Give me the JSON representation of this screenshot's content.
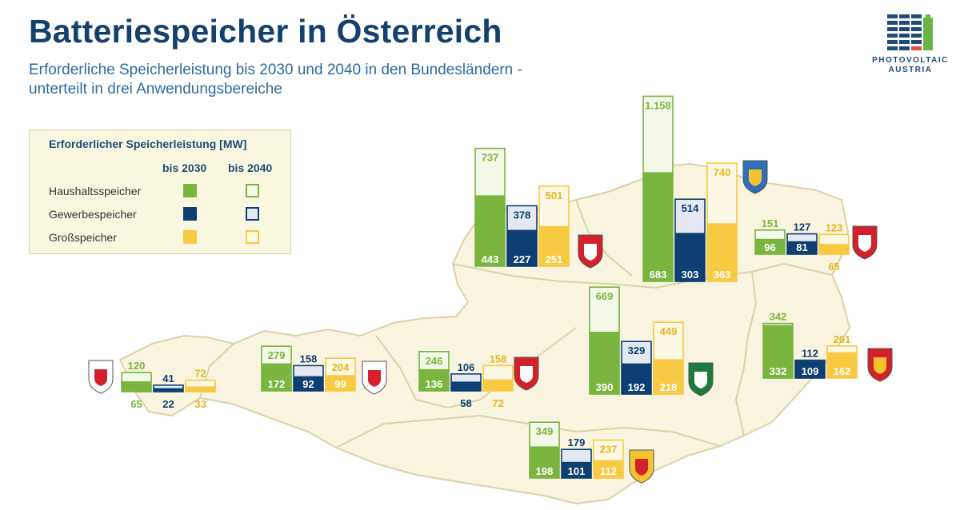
{
  "title": "Batteriespeicher in Österreich",
  "subtitle_lines": [
    "Erforderliche Speicherleistung bis 2030 und 2040 in den Bundesländern -",
    "unterteilt in drei Anwendungsbereiche"
  ],
  "logo": {
    "line1": "PHOTOVOLTAIC",
    "line2": "AUSTRIA"
  },
  "legend": {
    "title": "Erforderlicher Speicherleistung [MW]",
    "col_2030": "bis 2030",
    "col_2040": "bis 2040",
    "rows": [
      "Haushaltsspeicher",
      "Gewerbespeicher",
      "Großspeicher"
    ]
  },
  "colors": {
    "haushalt": "#7ab53f",
    "haushalt_light": "#f4f8e8",
    "haushalt_border": "#7ab53f",
    "gewerbe": "#0d3f72",
    "gewerbe_light": "#e3e8f2",
    "gewerbe_border": "#0d3f72",
    "gross": "#f8c943",
    "gross_light": "#fef9e4",
    "gross_border": "#f8c943",
    "map": "#f8f4e0",
    "map_border": "#d9d3a5"
  },
  "chart_data": {
    "type": "bar",
    "unit": "MW",
    "series": [
      "Haushaltsspeicher",
      "Gewerbespeicher",
      "Großspeicher"
    ],
    "regions": [
      {
        "emblem": "vorarlberg-coat-icon",
        "haushalt": [
          65,
          120
        ],
        "gewerbe": [
          22,
          41
        ],
        "gross": [
          33,
          72
        ]
      },
      {
        "emblem": "tirol-coat-icon",
        "haushalt": [
          172,
          279
        ],
        "gewerbe": [
          92,
          158
        ],
        "gross": [
          99,
          204
        ]
      },
      {
        "emblem": "salzburg-coat-icon",
        "haushalt": [
          136,
          246
        ],
        "gewerbe": [
          58,
          106
        ],
        "gross": [
          72,
          158
        ]
      },
      {
        "emblem": "oberoesterreich-coat-icon",
        "haushalt": [
          443,
          737
        ],
        "gewerbe": [
          227,
          378
        ],
        "gross": [
          251,
          501
        ]
      },
      {
        "emblem": "niederoesterreich-coat-icon",
        "haushalt": [
          683,
          "1.158"
        ],
        "gewerbe": [
          303,
          514
        ],
        "gross": [
          363,
          740
        ]
      },
      {
        "emblem": "wien-coat-icon",
        "haushalt": [
          96,
          151
        ],
        "gewerbe": [
          81,
          127
        ],
        "gross": [
          65,
          123
        ]
      },
      {
        "emblem": "steiermark-coat-icon",
        "haushalt": [
          390,
          669
        ],
        "gewerbe": [
          192,
          329
        ],
        "gross": [
          218,
          449
        ]
      },
      {
        "emblem": "burgenland-coat-icon",
        "haushalt": [
          332,
          342
        ],
        "gewerbe": [
          109,
          112
        ],
        "gross": [
          162,
          201
        ]
      },
      {
        "emblem": "kaernten-coat-icon",
        "haushalt": [
          198,
          349
        ],
        "gewerbe": [
          101,
          179
        ],
        "gross": [
          112,
          237
        ]
      }
    ]
  }
}
